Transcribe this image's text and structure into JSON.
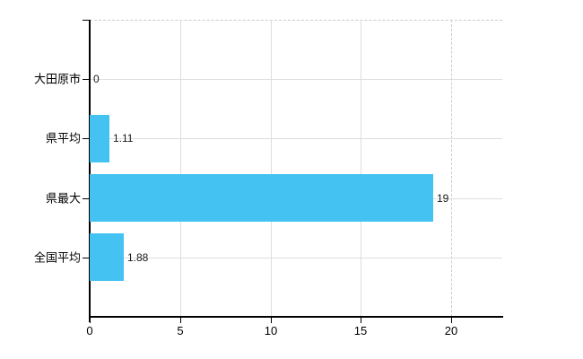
{
  "chart_data": {
    "type": "bar",
    "orientation": "horizontal",
    "title": "",
    "categories": [
      "大田原市",
      "県平均",
      "県最大",
      "全国平均"
    ],
    "values": [
      0,
      1.11,
      19,
      1.88
    ],
    "value_labels": [
      "0",
      "1.11",
      "19",
      "1.88"
    ],
    "x_ticks": [
      0,
      5,
      10,
      15,
      20
    ],
    "x_tick_labels": [
      "0",
      "5",
      "10",
      "15",
      "20"
    ],
    "xlim": [
      0,
      22.8
    ],
    "grid": "vertical gridlines at 5/10/15 solid, at 20 dashed; horizontal gridline per category row; dashed top plot border",
    "legend": "none",
    "colors": {
      "bar": "#44C2F2",
      "grid_solid": "#dcdedc",
      "grid_dashed": "#c9ccc9",
      "axis": "#000000",
      "label_text": "#000000",
      "value_text": "#1a1a1a",
      "background": "#ffffff"
    }
  }
}
